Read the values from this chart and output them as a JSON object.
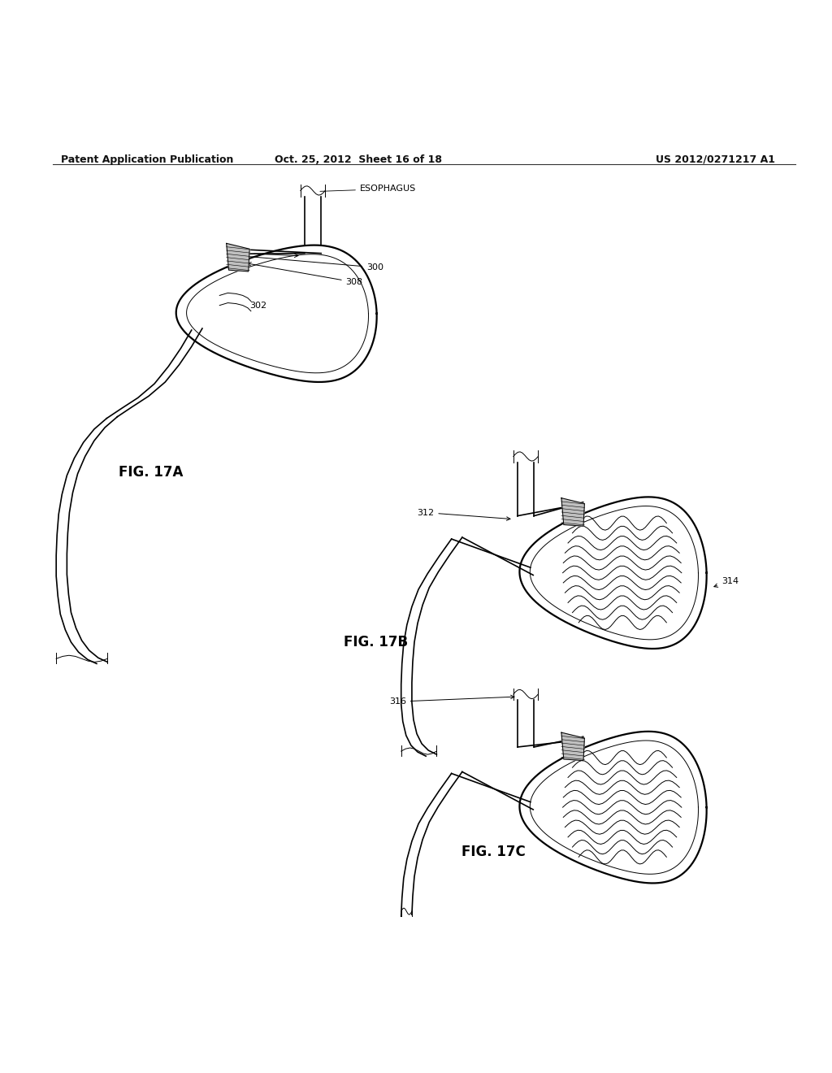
{
  "header_left": "Patent Application Publication",
  "header_mid": "Oct. 25, 2012  Sheet 16 of 18",
  "header_right": "US 2012/0271217 A1",
  "bg_color": "#ffffff",
  "line_color": "#000000"
}
